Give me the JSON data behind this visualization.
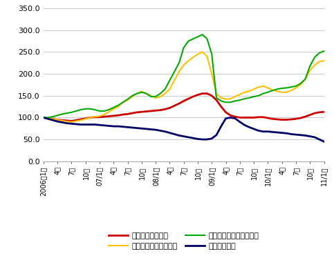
{
  "ylabel_values": [
    0.0,
    50.0,
    100.0,
    150.0,
    200.0,
    250.0,
    300.0,
    350.0
  ],
  "ylim": [
    0.0,
    350.0
  ],
  "series": {
    "domestic_soyoil": {
      "label": "国内の大豆油価格",
      "color": "#cc0000",
      "linewidth": 2.0,
      "data": [
        100,
        98,
        97,
        95,
        94,
        93,
        92,
        94,
        96,
        98,
        100,
        101,
        101,
        102,
        103,
        104,
        105,
        107,
        108,
        110,
        112,
        113,
        114,
        115,
        116,
        117,
        119,
        122,
        127,
        132,
        138,
        143,
        148,
        152,
        155,
        155,
        150,
        140,
        125,
        112,
        105,
        102,
        100,
        100,
        100,
        100,
        101,
        101,
        99,
        97,
        96,
        95,
        95,
        96,
        97,
        99,
        102,
        106,
        110,
        112,
        113
      ]
    },
    "chicago_soybean": {
      "label": "シカゴ市場の大豆価格",
      "color": "#ffc000",
      "linewidth": 1.5,
      "data": [
        100,
        98,
        97,
        95,
        93,
        91,
        90,
        92,
        94,
        97,
        100,
        102,
        103,
        107,
        113,
        120,
        125,
        135,
        140,
        148,
        155,
        160,
        155,
        150,
        145,
        148,
        155,
        165,
        185,
        205,
        220,
        230,
        238,
        245,
        250,
        240,
        200,
        155,
        145,
        142,
        143,
        148,
        153,
        158,
        160,
        165,
        170,
        172,
        168,
        163,
        160,
        158,
        158,
        162,
        168,
        175,
        188,
        208,
        220,
        228,
        230
      ]
    },
    "chicago_soyoil": {
      "label": "シカゴ市場の大豆油価格",
      "color": "#00aa00",
      "linewidth": 1.5,
      "data": [
        100,
        100,
        102,
        105,
        108,
        110,
        112,
        115,
        118,
        120,
        120,
        118,
        115,
        115,
        118,
        123,
        128,
        135,
        142,
        150,
        155,
        158,
        155,
        148,
        148,
        155,
        165,
        185,
        205,
        225,
        260,
        275,
        280,
        285,
        290,
        280,
        245,
        145,
        138,
        135,
        135,
        138,
        140,
        143,
        145,
        148,
        150,
        155,
        158,
        162,
        165,
        167,
        168,
        170,
        172,
        178,
        188,
        218,
        238,
        248,
        252
      ]
    },
    "terms_of_trade": {
      "label": "交易条件指数",
      "color": "#000066",
      "linewidth": 2.0,
      "data": [
        100,
        97,
        94,
        91,
        89,
        87,
        86,
        85,
        84,
        84,
        84,
        84,
        83,
        82,
        81,
        80,
        80,
        79,
        78,
        77,
        76,
        75,
        74,
        73,
        72,
        70,
        68,
        65,
        62,
        59,
        57,
        55,
        53,
        51,
        50,
        50,
        52,
        60,
        80,
        98,
        100,
        98,
        90,
        83,
        78,
        74,
        70,
        68,
        68,
        67,
        66,
        65,
        64,
        62,
        61,
        60,
        59,
        57,
        55,
        50,
        45
      ]
    }
  },
  "x_tick_labels": [
    "2006年1月",
    "4月",
    "7月",
    "10月",
    "07/1月",
    "4月",
    "7月",
    "10月",
    "08/1月",
    "4月",
    "7月",
    "10月",
    "09/1月",
    "4月",
    "7月",
    "10月",
    "10/1月",
    "4月",
    "7月",
    "10月",
    "11/1月"
  ],
  "x_tick_positions": [
    0,
    3,
    6,
    9,
    12,
    15,
    18,
    21,
    24,
    27,
    30,
    33,
    36,
    39,
    42,
    45,
    48,
    51,
    54,
    57,
    60
  ],
  "background_color": "#ffffff",
  "grid_color": "#c0c0c0"
}
